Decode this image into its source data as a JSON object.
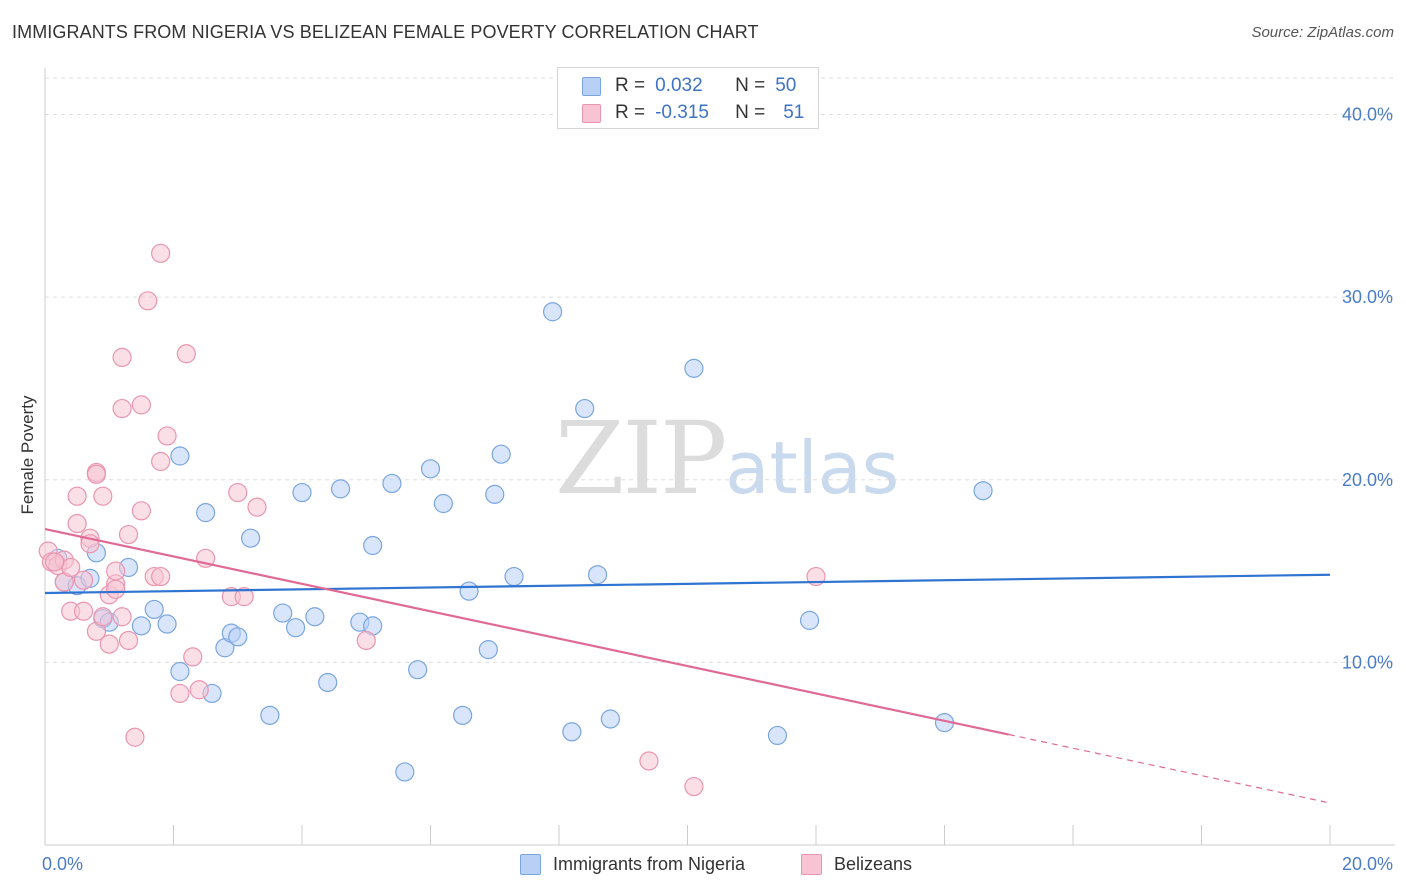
{
  "header": {
    "title": "IMMIGRANTS FROM NIGERIA VS BELIZEAN FEMALE POVERTY CORRELATION CHART",
    "source": "Source: ZipAtlas.com"
  },
  "watermark": {
    "part1": "ZIP",
    "part2": "atlas"
  },
  "legend": {
    "rows": [
      {
        "r_label": "R =",
        "r_value": "0.032",
        "n_label": "N =",
        "n_value": "50"
      },
      {
        "r_label": "R =",
        "r_value": "-0.315",
        "n_label": "N =",
        "n_value": "51"
      }
    ]
  },
  "colors": {
    "blue_fill": "#b8d0f5",
    "blue_stroke": "#7aa6e0",
    "blue_line": "#2f74d0",
    "pink_fill": "#f8c4d4",
    "pink_stroke": "#ea95b0",
    "pink_line": "#e06a96",
    "grid": "#dddddd",
    "tick_text": "#4a7cc7"
  },
  "chart_data": {
    "type": "scatter",
    "title": "IMMIGRANTS FROM NIGERIA VS BELIZEAN FEMALE POVERTY CORRELATION CHART",
    "xlabel": "",
    "ylabel": "Female Poverty",
    "xlim": [
      0,
      20
    ],
    "ylim": [
      0,
      42
    ],
    "x_tick_labels": [
      {
        "value": 0,
        "label": "0.0%"
      },
      {
        "value": 20,
        "label": "20.0%"
      }
    ],
    "y_tick_labels": [
      {
        "value": 10,
        "label": "10.0%"
      },
      {
        "value": 20,
        "label": "20.0%"
      },
      {
        "value": 30,
        "label": "30.0%"
      },
      {
        "value": 40,
        "label": "40.0%"
      }
    ],
    "grid": true,
    "series": [
      {
        "name": "Immigrants from Nigeria",
        "color": "blue",
        "r": 0.032,
        "n": 50,
        "trend": {
          "x0": 0.0,
          "y0": 13.8,
          "x1": 20.0,
          "y1": 14.8,
          "x_solid_end": 20.0
        },
        "points": [
          [
            0.2,
            15.7
          ],
          [
            0.3,
            14.4
          ],
          [
            0.5,
            14.2
          ],
          [
            0.7,
            14.6
          ],
          [
            0.8,
            16.0
          ],
          [
            0.9,
            12.4
          ],
          [
            1.0,
            12.2
          ],
          [
            1.3,
            15.2
          ],
          [
            1.5,
            12.0
          ],
          [
            1.7,
            12.9
          ],
          [
            1.9,
            12.1
          ],
          [
            2.1,
            9.5
          ],
          [
            2.1,
            21.3
          ],
          [
            2.5,
            18.2
          ],
          [
            2.6,
            8.3
          ],
          [
            2.8,
            10.8
          ],
          [
            2.9,
            11.6
          ],
          [
            3.0,
            11.4
          ],
          [
            3.2,
            16.8
          ],
          [
            3.5,
            7.1
          ],
          [
            3.7,
            12.7
          ],
          [
            3.9,
            11.9
          ],
          [
            4.0,
            19.3
          ],
          [
            4.2,
            12.5
          ],
          [
            4.4,
            8.9
          ],
          [
            4.6,
            19.5
          ],
          [
            4.9,
            12.2
          ],
          [
            5.1,
            12.0
          ],
          [
            5.1,
            16.4
          ],
          [
            5.4,
            19.8
          ],
          [
            5.6,
            4.0
          ],
          [
            5.8,
            9.6
          ],
          [
            6.0,
            20.6
          ],
          [
            6.2,
            18.7
          ],
          [
            6.5,
            7.1
          ],
          [
            6.6,
            13.9
          ],
          [
            6.9,
            10.7
          ],
          [
            7.0,
            19.2
          ],
          [
            7.1,
            21.4
          ],
          [
            7.3,
            14.7
          ],
          [
            7.9,
            29.2
          ],
          [
            8.2,
            6.2
          ],
          [
            8.4,
            23.9
          ],
          [
            8.6,
            14.8
          ],
          [
            8.8,
            6.9
          ],
          [
            10.1,
            26.1
          ],
          [
            11.4,
            6.0
          ],
          [
            11.9,
            12.3
          ],
          [
            14.0,
            6.7
          ],
          [
            14.6,
            19.4
          ]
        ]
      },
      {
        "name": "Belizeans",
        "color": "pink",
        "r": -0.315,
        "n": 51,
        "trend": {
          "x0": 0.0,
          "y0": 17.3,
          "x1": 20.0,
          "y1": 2.3,
          "x_solid_end": 15.0
        },
        "points": [
          [
            0.05,
            16.1
          ],
          [
            0.1,
            15.5
          ],
          [
            0.2,
            15.3
          ],
          [
            0.3,
            15.6
          ],
          [
            0.3,
            14.4
          ],
          [
            0.4,
            15.2
          ],
          [
            0.4,
            12.8
          ],
          [
            0.5,
            17.6
          ],
          [
            0.5,
            19.1
          ],
          [
            0.6,
            14.5
          ],
          [
            0.6,
            12.8
          ],
          [
            0.7,
            16.8
          ],
          [
            0.7,
            16.5
          ],
          [
            0.8,
            20.4
          ],
          [
            0.8,
            11.7
          ],
          [
            0.8,
            20.3
          ],
          [
            0.9,
            19.1
          ],
          [
            0.9,
            12.5
          ],
          [
            1.0,
            11.0
          ],
          [
            1.0,
            13.7
          ],
          [
            1.1,
            14.3
          ],
          [
            1.1,
            14.0
          ],
          [
            1.1,
            15.0
          ],
          [
            1.2,
            26.7
          ],
          [
            1.2,
            12.5
          ],
          [
            1.2,
            23.9
          ],
          [
            1.3,
            17.0
          ],
          [
            1.3,
            11.2
          ],
          [
            1.4,
            5.9
          ],
          [
            1.5,
            24.1
          ],
          [
            1.5,
            18.3
          ],
          [
            1.6,
            29.8
          ],
          [
            1.7,
            14.7
          ],
          [
            1.8,
            14.7
          ],
          [
            1.8,
            21.0
          ],
          [
            1.8,
            32.4
          ],
          [
            1.9,
            22.4
          ],
          [
            2.1,
            8.3
          ],
          [
            2.2,
            26.9
          ],
          [
            2.3,
            10.3
          ],
          [
            2.4,
            8.5
          ],
          [
            2.5,
            15.7
          ],
          [
            2.9,
            13.6
          ],
          [
            3.0,
            19.3
          ],
          [
            3.1,
            13.6
          ],
          [
            3.3,
            18.5
          ],
          [
            5.0,
            11.2
          ],
          [
            9.4,
            4.6
          ],
          [
            10.1,
            3.2
          ],
          [
            12.0,
            14.7
          ],
          [
            0.15,
            15.5
          ]
        ]
      }
    ]
  },
  "bottom_legend": {
    "items": [
      {
        "label": "Immigrants from Nigeria"
      },
      {
        "label": "Belizeans"
      }
    ]
  }
}
